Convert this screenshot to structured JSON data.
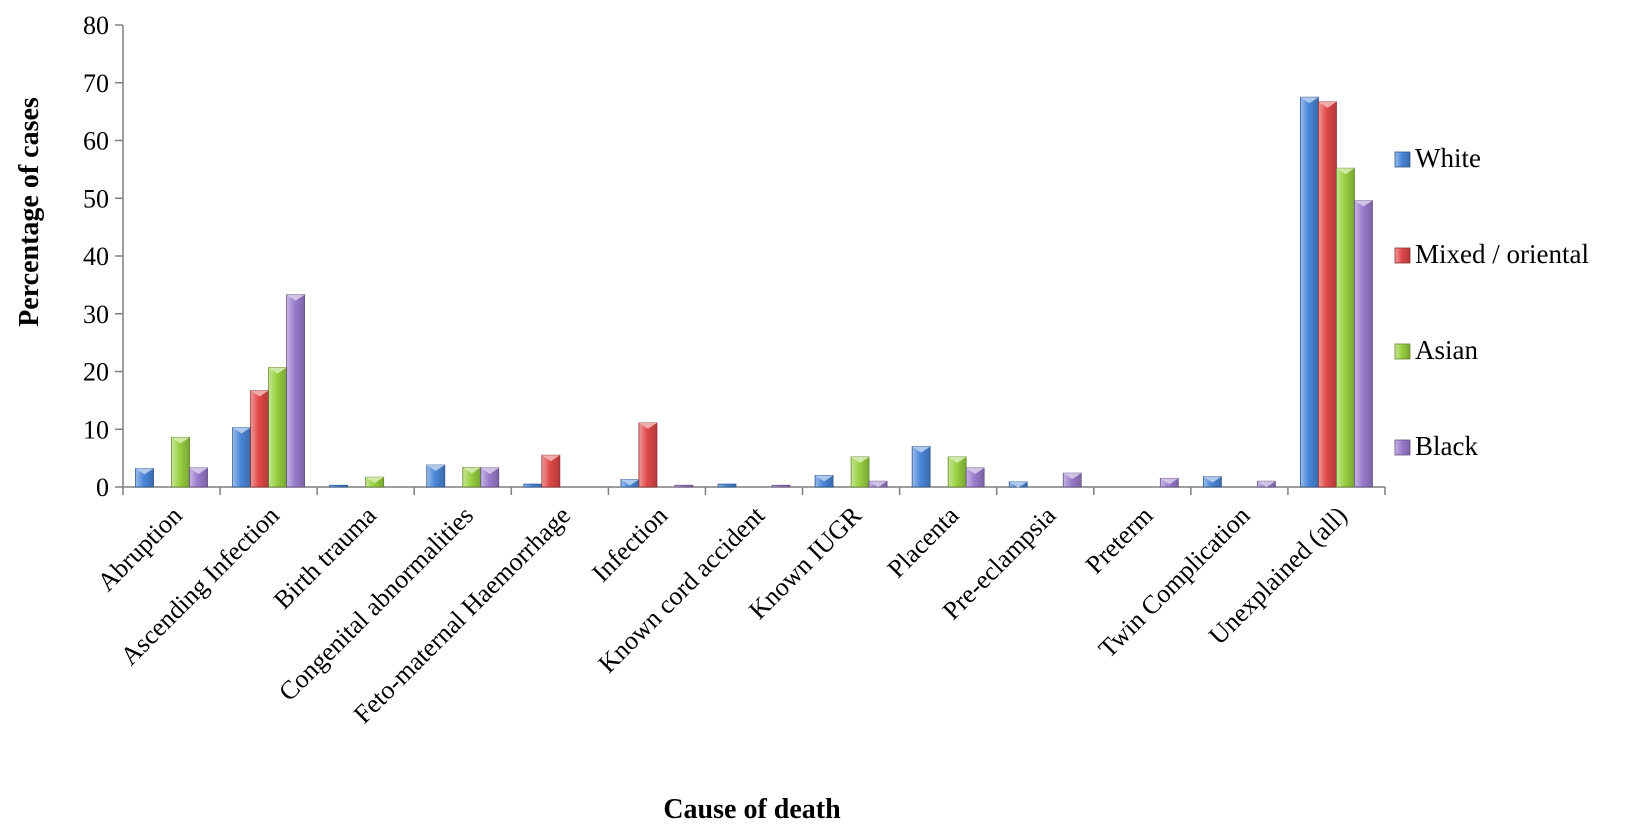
{
  "chart_data": {
    "type": "bar",
    "title": "",
    "xlabel": "Cause of death",
    "ylabel": "Percentage of cases",
    "ylim": [
      0,
      80
    ],
    "yticks": [
      0,
      10,
      20,
      30,
      40,
      50,
      60,
      70,
      80
    ],
    "grid": false,
    "legend_position": "right",
    "categories": [
      "Abruption",
      "Ascending Infection",
      "Birth trauma",
      "Congenital abnormalities",
      "Feto-maternal Haemorrhage",
      "Infection",
      "Known cord accident",
      "Known IUGR",
      "Placenta",
      "Pre-eclampsia",
      "Preterm",
      "Twin Complication",
      "Unexplained (all)"
    ],
    "series": [
      {
        "name": "White",
        "color": "#4a86d8",
        "values": [
          3.2,
          10.3,
          0.3,
          3.8,
          0.5,
          1.3,
          0.5,
          2.0,
          7.0,
          0.9,
          0.0,
          1.8,
          67.5
        ]
      },
      {
        "name": "Mixed / oriental",
        "color": "#e04848",
        "values": [
          0.0,
          16.7,
          0.0,
          0.0,
          5.5,
          11.1,
          0.0,
          0.0,
          0.0,
          0.0,
          0.0,
          0.0,
          66.7
        ]
      },
      {
        "name": "Asian",
        "color": "#98d040",
        "values": [
          8.6,
          20.7,
          1.7,
          3.4,
          0.0,
          0.0,
          0.0,
          5.2,
          5.2,
          0.0,
          0.0,
          0.0,
          55.2
        ]
      },
      {
        "name": "Black",
        "color": "#9a7ccc",
        "values": [
          3.3,
          33.3,
          0.0,
          3.3,
          0.0,
          0.3,
          0.3,
          1.0,
          3.3,
          2.4,
          1.5,
          1.0,
          49.6
        ]
      }
    ]
  }
}
